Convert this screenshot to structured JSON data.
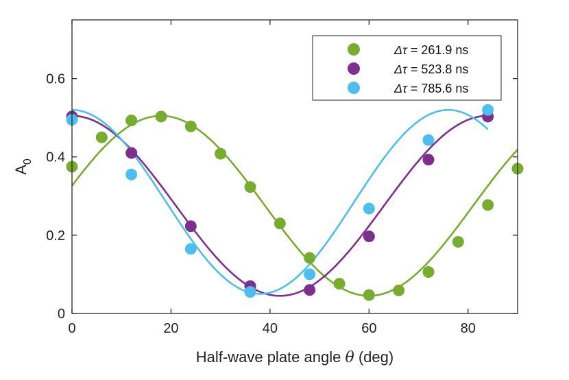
{
  "chart_data": {
    "type": "scatter",
    "xlabel": "Half-wave plate angle θ (deg)",
    "xlabel_parts": {
      "main": "Half-wave plate angle ",
      "symbol": "θ",
      "unit": " (deg)"
    },
    "ylabel_main": "A",
    "ylabel_sub": "0",
    "xlim": [
      0,
      90
    ],
    "ylim": [
      0,
      0.75
    ],
    "xticks": [
      0,
      20,
      40,
      60,
      80
    ],
    "yticks": [
      0,
      0.2,
      0.4,
      0.6
    ],
    "xtick_labels": [
      "0",
      "20",
      "40",
      "60",
      "80"
    ],
    "ytick_labels": [
      "0",
      "0.2",
      "0.4",
      "0.6"
    ],
    "grid": false,
    "legend_position": "top-right",
    "series": [
      {
        "name": "Δτ = 261.9 ns",
        "legend_symbol": "Δτ",
        "legend_value": " = 261.9 ns",
        "color": "#77ac30",
        "x": [
          0,
          6,
          12,
          18,
          24,
          30,
          36,
          42,
          48,
          54,
          60,
          66,
          72,
          78,
          84,
          90
        ],
        "y": [
          0.375,
          0.45,
          0.493,
          0.503,
          0.478,
          0.408,
          0.323,
          0.23,
          0.142,
          0.076,
          0.047,
          0.059,
          0.106,
          0.183,
          0.277,
          0.37
        ],
        "fit": {
          "mean": 0.275,
          "amp": 0.23,
          "period": 84,
          "peak_at": 18
        }
      },
      {
        "name": "Δτ = 523.8 ns",
        "legend_symbol": "Δτ",
        "legend_value": " = 523.8 ns",
        "color": "#7e2f8e",
        "x": [
          0,
          12,
          24,
          36,
          48,
          60,
          72,
          84
        ],
        "y": [
          0.503,
          0.41,
          0.223,
          0.07,
          0.06,
          0.197,
          0.393,
          0.503
        ],
        "fit": {
          "mean": 0.275,
          "amp": 0.23,
          "period": 84,
          "peak_at": 0
        }
      },
      {
        "name": "Δτ = 785.6 ns",
        "legend_symbol": "Δτ",
        "legend_value": " = 785.6 ns",
        "color": "#4dbeee",
        "x": [
          0,
          12,
          24,
          36,
          48,
          60,
          72,
          84
        ],
        "y": [
          0.495,
          0.355,
          0.165,
          0.055,
          0.1,
          0.268,
          0.443,
          0.52
        ],
        "fit": {
          "mean": 0.285,
          "amp": 0.235,
          "period": 76,
          "peak_at": 0
        }
      }
    ]
  }
}
